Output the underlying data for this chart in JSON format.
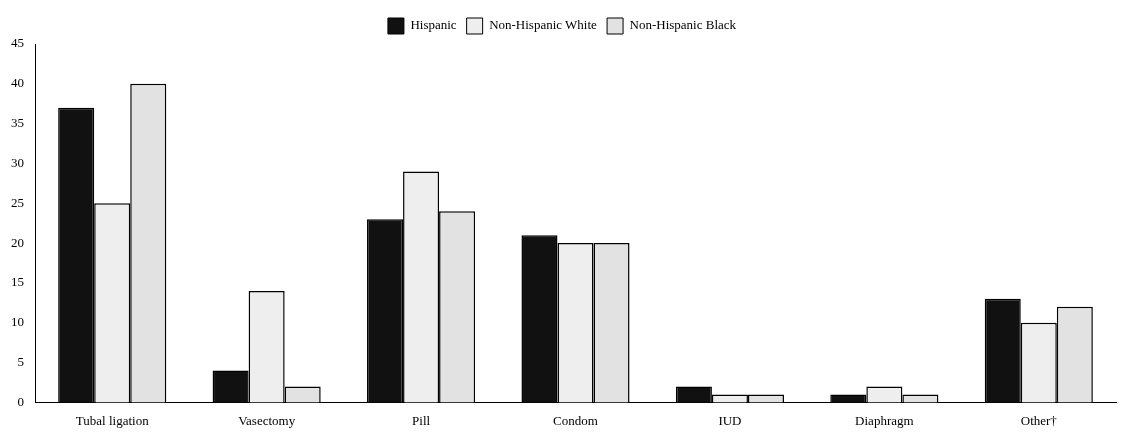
{
  "chart_data": {
    "type": "bar",
    "categories": [
      "Tubal ligation",
      "Vasectomy",
      "Pill",
      "Condom",
      "IUD",
      "Diaphragm",
      "Other†"
    ],
    "series": [
      {
        "name": "Hispanic",
        "color": "#111111",
        "values": [
          37,
          4,
          23,
          21,
          2,
          1,
          13
        ]
      },
      {
        "name": "Non-Hispanic White",
        "color": "#eeeeee",
        "values": [
          25,
          14,
          29,
          20,
          1,
          2,
          10
        ]
      },
      {
        "name": "Non-Hispanic Black",
        "color": "#e2e2e2",
        "values": [
          40,
          2,
          24,
          20,
          1,
          1,
          12
        ]
      }
    ],
    "ylim": [
      0,
      45
    ],
    "yticks": [
      0,
      5,
      10,
      15,
      20,
      25,
      30,
      35,
      40,
      45
    ],
    "grid": false,
    "legend": "top"
  }
}
